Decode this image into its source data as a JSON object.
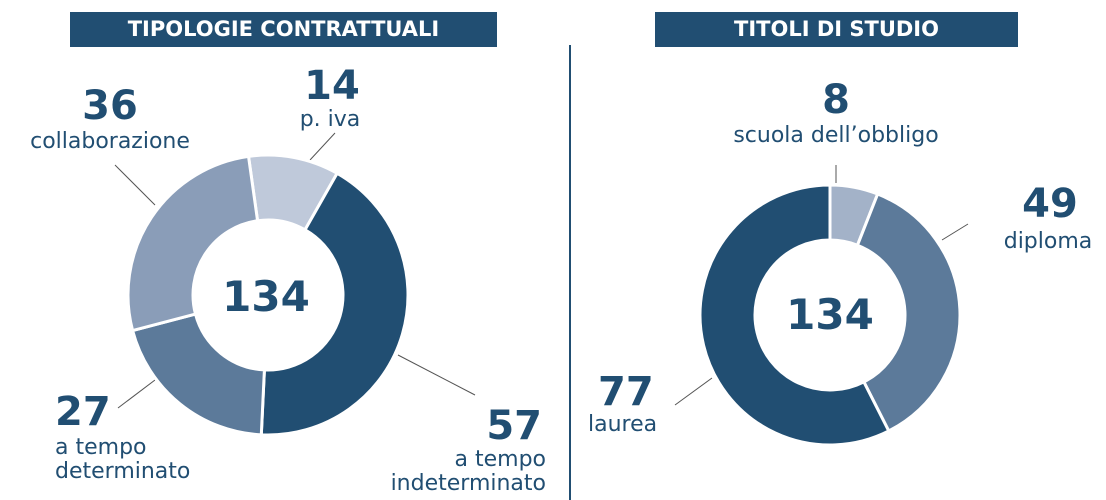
{
  "chart_data": [
    {
      "type": "donut",
      "title": "TIPOLOGIE CONTRATTUALI",
      "total": 134,
      "categories": [
        "p. iva",
        "a tempo indeterminato",
        "a tempo determinato",
        "collaborazione"
      ],
      "values": [
        14,
        57,
        27,
        36
      ],
      "colors": [
        "#bfc9da",
        "#214e72",
        "#5c7a9a",
        "#8a9db8"
      ]
    },
    {
      "type": "donut",
      "title": "TITOLI DI STUDIO",
      "total": 134,
      "categories": [
        "scuola dell’obbligo",
        "diploma",
        "laurea"
      ],
      "values": [
        8,
        49,
        77
      ],
      "colors": [
        "#a3b2c8",
        "#5c7a9a",
        "#214e72"
      ]
    }
  ]
}
